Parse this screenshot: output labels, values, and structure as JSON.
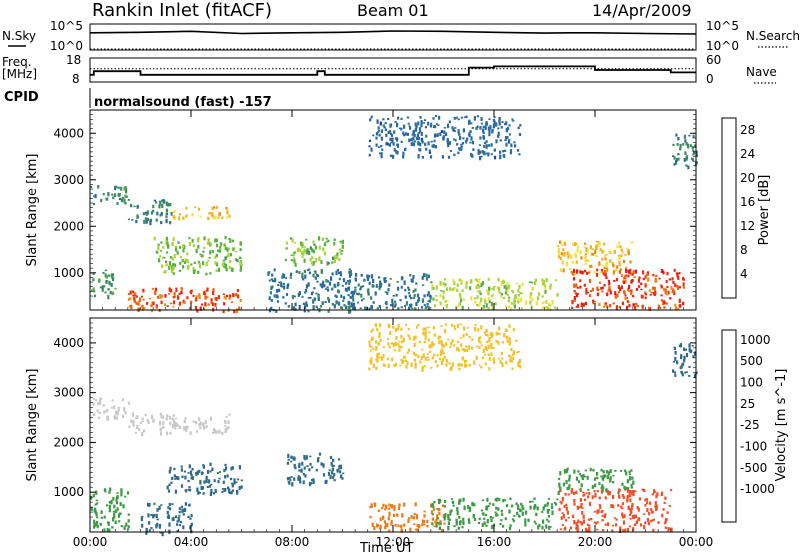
{
  "header": {
    "title": "Rankin Inlet (fitACF)",
    "beam": "Beam 01",
    "date": "14/Apr/2009"
  },
  "left_labels": {
    "nsky": "N.Sky",
    "freq": "Freq.",
    "freq_unit": "[MHz]",
    "cpid": "CPID"
  },
  "right_labels": {
    "nsearch": "N.Search",
    "nave": "Nave"
  },
  "cpid_text": "normalsound (fast) -157",
  "colors": {
    "power": [
      "#1a1aff",
      "#1f3fb0",
      "#2a6a9c",
      "#3c8a62",
      "#56b040",
      "#a8d43a",
      "#f0e040",
      "#f5b020",
      "#f08a14",
      "#ef6010",
      "#e83010",
      "#e61a1a"
    ],
    "velocity": [
      "#e81010",
      "#f0502a",
      "#f07a18",
      "#f3a020",
      "#f3c12a",
      "#c8c8c8",
      "#c8c8c8",
      "#6ad040",
      "#3c9a46",
      "#2f6a8a",
      "#2a4fb0",
      "#1a1acc"
    ]
  },
  "chart_data": [
    {
      "type": "line",
      "name": "noise-panel",
      "left_axis_ticks": [
        "10^5",
        "10^0"
      ],
      "right_axis_ticks": [
        "10^5",
        "10^0"
      ],
      "series": [
        {
          "name": "N.Sky",
          "x": [
            0,
            2,
            4,
            6,
            8,
            9,
            10,
            12,
            14,
            16,
            18,
            19,
            20,
            22,
            24
          ],
          "y": [
            2000,
            2500,
            4000,
            1500,
            2000,
            2200,
            2500,
            4500,
            4000,
            2500,
            1800,
            2000,
            2000,
            1500,
            1200
          ]
        },
        {
          "name": "N.Search",
          "x": [
            0,
            24
          ],
          "y": [
            1,
            1
          ]
        }
      ]
    },
    {
      "type": "line",
      "name": "frequency-panel",
      "left_axis_ticks": [
        "18",
        "8"
      ],
      "right_axis_ticks": [
        "60",
        "0"
      ],
      "series": [
        {
          "name": "Freq.",
          "x": [
            0,
            0.15,
            0.15,
            2,
            2,
            9,
            9,
            9.3,
            9.3,
            15,
            15,
            16,
            16,
            20,
            20,
            23,
            23,
            24
          ],
          "y": [
            11,
            11,
            12.5,
            12.5,
            11,
            11,
            12.5,
            12.5,
            11,
            11,
            14,
            14,
            14.5,
            14.5,
            13,
            13,
            12,
            12
          ]
        },
        {
          "name": "Nave",
          "x": [
            0,
            24
          ],
          "y": [
            33,
            33
          ]
        }
      ]
    },
    {
      "type": "heatmap",
      "name": "power-panel",
      "xlabel": "",
      "ylabel": "Slant Range [km]",
      "x_ticks": [
        "00:00",
        "04:00",
        "08:00",
        "12:00",
        "16:00",
        "20:00",
        "00:00"
      ],
      "xlim": [
        0,
        24
      ],
      "y_ticks": [
        1000,
        2000,
        3000,
        4000
      ],
      "ylim": [
        200,
        4500
      ],
      "colorbar_label": "Power [dB]",
      "colorbar_ticks": [
        4,
        8,
        12,
        16,
        20,
        24,
        28
      ],
      "colorbar_range": [
        0,
        30
      ],
      "regions": [
        {
          "t0": 0.0,
          "t1": 1.5,
          "r0": 2500,
          "r1": 2900,
          "v": 9
        },
        {
          "t0": 1.5,
          "t1": 3.2,
          "r0": 2100,
          "r1": 2600,
          "v": 8
        },
        {
          "t0": 3.2,
          "t1": 5.5,
          "r0": 2200,
          "r1": 2450,
          "v": 18
        },
        {
          "t0": 0.0,
          "t1": 1.0,
          "r0": 500,
          "r1": 1100,
          "v": 9
        },
        {
          "t0": 1.5,
          "t1": 6.0,
          "r0": 200,
          "r1": 700,
          "v": 24
        },
        {
          "t0": 2.5,
          "t1": 6.0,
          "r0": 1000,
          "r1": 1800,
          "v": 12
        },
        {
          "t0": 7.7,
          "t1": 10.0,
          "r0": 1200,
          "r1": 1800,
          "v": 12
        },
        {
          "t0": 7.0,
          "t1": 10.5,
          "r0": 200,
          "r1": 1100,
          "v": 7
        },
        {
          "t0": 10.0,
          "t1": 13.5,
          "r0": 250,
          "r1": 1000,
          "v": 7
        },
        {
          "t0": 13.5,
          "t1": 18.5,
          "r0": 250,
          "r1": 900,
          "v": 14
        },
        {
          "t0": 18.5,
          "t1": 21.5,
          "r0": 1000,
          "r1": 1700,
          "v": 18
        },
        {
          "t0": 19.0,
          "t1": 23.5,
          "r0": 250,
          "r1": 1100,
          "v": 26
        },
        {
          "t0": 23.0,
          "t1": 24.0,
          "r0": 3300,
          "r1": 4000,
          "v": 8
        },
        {
          "t0": 11.0,
          "t1": 17.0,
          "r0": 3500,
          "r1": 4400,
          "v": 6
        }
      ]
    },
    {
      "type": "heatmap",
      "name": "velocity-panel",
      "xlabel": "Time UT",
      "ylabel": "Slant Range [km]",
      "x_ticks": [
        "00:00",
        "04:00",
        "08:00",
        "12:00",
        "16:00",
        "20:00",
        "00:00"
      ],
      "xlim": [
        0,
        24
      ],
      "y_ticks": [
        1000,
        2000,
        3000,
        4000
      ],
      "ylim": [
        200,
        4500
      ],
      "colorbar_label": "Velocity [m s^-1]",
      "colorbar_ticks": [
        -1000,
        -500,
        -100,
        -25,
        25,
        100,
        500,
        1000
      ],
      "regions": [
        {
          "t0": 0.0,
          "t1": 1.5,
          "r0": 2500,
          "r1": 2900,
          "v": 0
        },
        {
          "t0": 1.5,
          "t1": 5.5,
          "r0": 2200,
          "r1": 2600,
          "v": 0
        },
        {
          "t0": 0.0,
          "t1": 1.5,
          "r0": 250,
          "r1": 1100,
          "v": 150
        },
        {
          "t0": 2.0,
          "t1": 4.0,
          "r0": 200,
          "r1": 800,
          "v": 300
        },
        {
          "t0": 3.0,
          "t1": 6.0,
          "r0": 1000,
          "r1": 1600,
          "v": 300
        },
        {
          "t0": 7.7,
          "t1": 10.0,
          "r0": 1200,
          "r1": 1800,
          "v": 300
        },
        {
          "t0": 11.0,
          "t1": 14.0,
          "r0": 250,
          "r1": 800,
          "v": -300
        },
        {
          "t0": 13.5,
          "t1": 18.5,
          "r0": 300,
          "r1": 900,
          "v": 150
        },
        {
          "t0": 18.5,
          "t1": 21.5,
          "r0": 1000,
          "r1": 1500,
          "v": 200
        },
        {
          "t0": 18.5,
          "t1": 23.0,
          "r0": 250,
          "r1": 1100,
          "v": -700
        },
        {
          "t0": 23.0,
          "t1": 24.0,
          "r0": 3300,
          "r1": 4000,
          "v": 300
        },
        {
          "t0": 11.0,
          "t1": 17.0,
          "r0": 3500,
          "r1": 4400,
          "v": -60
        }
      ]
    }
  ]
}
